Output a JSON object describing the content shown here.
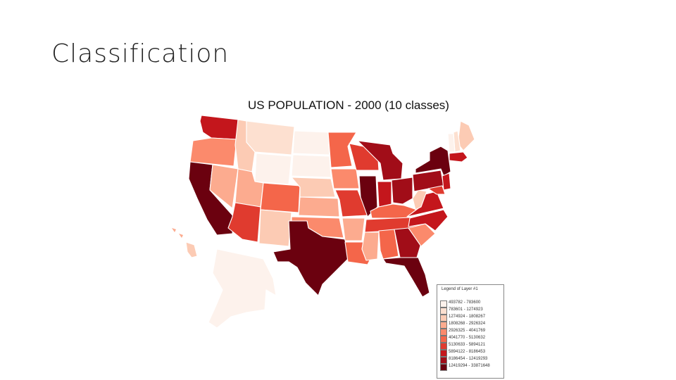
{
  "slide": {
    "title": "Classification"
  },
  "map": {
    "title": "US POPULATION - 2000 (10 classes)",
    "legend": {
      "title": "Legend of Layer #1",
      "classes": [
        {
          "label": "493782 - 783600",
          "color": "#fdf2ec"
        },
        {
          "label": "783601 - 1274923",
          "color": "#fde0d0"
        },
        {
          "label": "1274924 - 1808267",
          "color": "#fccbb4"
        },
        {
          "label": "1808268 - 2926324",
          "color": "#fcab8f"
        },
        {
          "label": "2926325 - 4041769",
          "color": "#fb8a6c"
        },
        {
          "label": "4041770 - 5130632",
          "color": "#f4664a"
        },
        {
          "label": "5130633 - 5894121",
          "color": "#e03b2f"
        },
        {
          "label": "5894122 - 8186453",
          "color": "#c4161c"
        },
        {
          "label": "8186454 - 12419293",
          "color": "#a10d18"
        },
        {
          "label": "12419294 - 33871648",
          "color": "#6b010f"
        }
      ]
    },
    "states": [
      {
        "id": "WA",
        "cls": 7
      },
      {
        "id": "OR",
        "cls": 4
      },
      {
        "id": "CA",
        "cls": 9
      },
      {
        "id": "NV",
        "cls": 3
      },
      {
        "id": "ID",
        "cls": 2
      },
      {
        "id": "MT",
        "cls": 1
      },
      {
        "id": "WY",
        "cls": 0
      },
      {
        "id": "UT",
        "cls": 3
      },
      {
        "id": "AZ",
        "cls": 6
      },
      {
        "id": "CO",
        "cls": 5
      },
      {
        "id": "NM",
        "cls": 2
      },
      {
        "id": "ND",
        "cls": 0
      },
      {
        "id": "SD",
        "cls": 0
      },
      {
        "id": "NE",
        "cls": 2
      },
      {
        "id": "KS",
        "cls": 3
      },
      {
        "id": "OK",
        "cls": 4
      },
      {
        "id": "TX",
        "cls": 9
      },
      {
        "id": "MN",
        "cls": 5
      },
      {
        "id": "IA",
        "cls": 4
      },
      {
        "id": "MO",
        "cls": 6
      },
      {
        "id": "AR",
        "cls": 3
      },
      {
        "id": "LA",
        "cls": 5
      },
      {
        "id": "WI",
        "cls": 6
      },
      {
        "id": "IL",
        "cls": 9
      },
      {
        "id": "MI",
        "cls": 8
      },
      {
        "id": "IN",
        "cls": 7
      },
      {
        "id": "OH",
        "cls": 8
      },
      {
        "id": "KY",
        "cls": 5
      },
      {
        "id": "TN",
        "cls": 6
      },
      {
        "id": "MS",
        "cls": 3
      },
      {
        "id": "AL",
        "cls": 5
      },
      {
        "id": "GA",
        "cls": 8
      },
      {
        "id": "FL",
        "cls": 9
      },
      {
        "id": "SC",
        "cls": 4
      },
      {
        "id": "NC",
        "cls": 7
      },
      {
        "id": "VA",
        "cls": 7
      },
      {
        "id": "WV",
        "cls": 2
      },
      {
        "id": "PA",
        "cls": 8
      },
      {
        "id": "NY",
        "cls": 9
      },
      {
        "id": "ME",
        "cls": 2
      },
      {
        "id": "NH",
        "cls": 1
      },
      {
        "id": "VT",
        "cls": 0
      },
      {
        "id": "MA",
        "cls": 7
      },
      {
        "id": "NJ",
        "cls": 7
      },
      {
        "id": "MD",
        "cls": 6
      },
      {
        "id": "AK",
        "cls": 0
      },
      {
        "id": "HI",
        "cls": 2
      }
    ]
  }
}
